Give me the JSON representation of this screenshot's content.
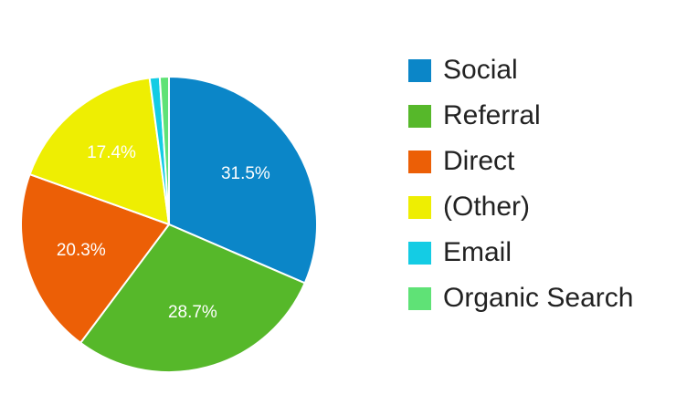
{
  "chart_data": {
    "type": "pie",
    "title": "",
    "start_angle_deg": 0,
    "direction": "clockwise",
    "legend_position": "right",
    "slices": [
      {
        "label": "Social",
        "value": 31.5,
        "value_label": "31.5%",
        "color": "#0B86C8"
      },
      {
        "label": "Referral",
        "value": 28.7,
        "value_label": "28.7%",
        "color": "#56B82A"
      },
      {
        "label": "Direct",
        "value": 20.3,
        "value_label": "20.3%",
        "color": "#EC5F06"
      },
      {
        "label": "(Other)",
        "value": 17.4,
        "value_label": "17.4%",
        "color": "#EEEE02"
      },
      {
        "label": "Email",
        "value": 1.1,
        "value_label": "",
        "color": "#14CCE4"
      },
      {
        "label": "Organic Search",
        "value": 1.0,
        "value_label": "",
        "color": "#5FE276"
      }
    ]
  }
}
